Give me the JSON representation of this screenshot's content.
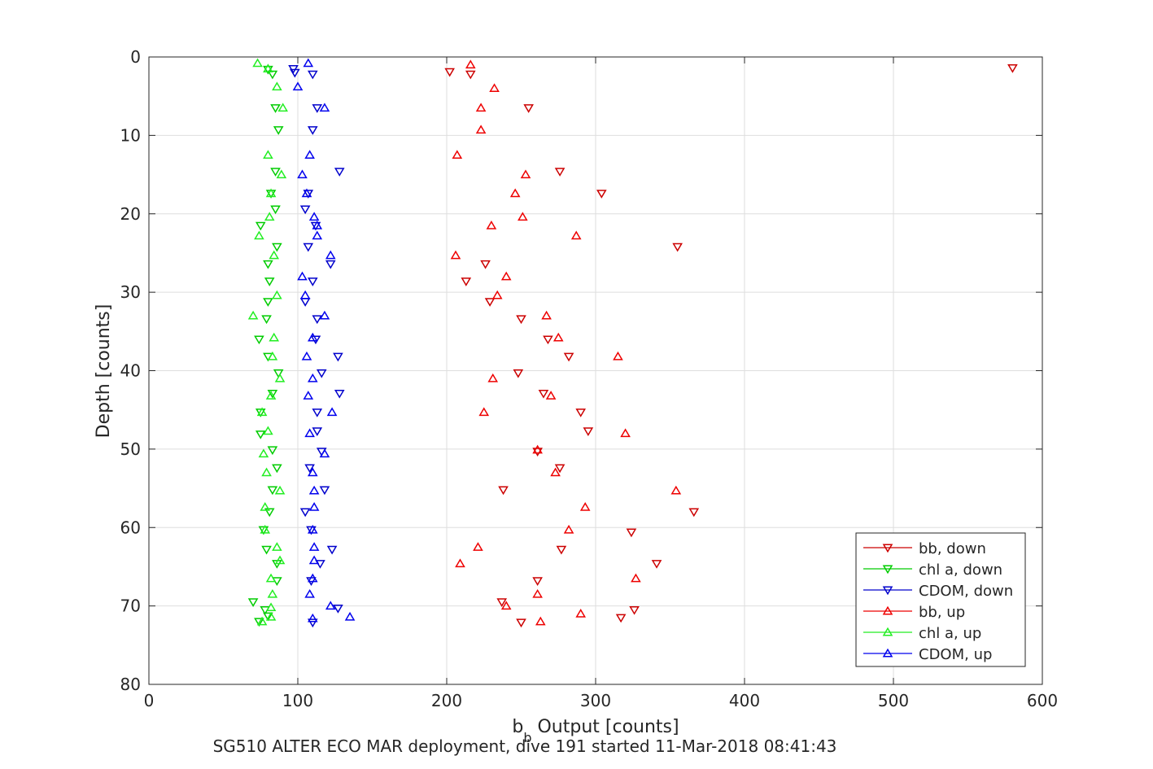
{
  "chart_data": {
    "type": "scatter",
    "xlabel_main": "b",
    "xlabel_sub": "b",
    "xlabel_rest": " Output [counts]",
    "ylabel": "Depth [counts]",
    "caption": "SG510 ALTER ECO MAR deployment, dive 191 started 11-Mar-2018 08:41:43",
    "xlim": [
      0,
      600
    ],
    "ylim": [
      0,
      80
    ],
    "y_reversed": true,
    "grid": true,
    "legend_position": "bottom-right",
    "x_ticks": [
      "0",
      "100",
      "200",
      "300",
      "400",
      "500",
      "600"
    ],
    "y_ticks": [
      "0",
      "10",
      "20",
      "30",
      "40",
      "50",
      "60",
      "70",
      "80"
    ],
    "series": [
      {
        "name": "bb, down",
        "color": "#cc0000",
        "marker": "triangle-down",
        "points": [
          [
            580,
            1.4
          ],
          [
            216,
            2.2
          ],
          [
            202,
            1.9
          ],
          [
            255,
            6.5
          ],
          [
            276,
            14.6
          ],
          [
            304,
            17.4
          ],
          [
            355,
            24.2
          ],
          [
            226,
            26.4
          ],
          [
            213,
            28.6
          ],
          [
            229,
            31.2
          ],
          [
            250,
            33.4
          ],
          [
            268,
            36.0
          ],
          [
            282,
            38.2
          ],
          [
            248,
            40.3
          ],
          [
            265,
            42.9
          ],
          [
            290,
            45.3
          ],
          [
            295,
            47.7
          ],
          [
            261,
            50.3
          ],
          [
            276,
            52.4
          ],
          [
            238,
            55.2
          ],
          [
            366,
            58.0
          ],
          [
            324,
            60.6
          ],
          [
            277,
            62.8
          ],
          [
            341,
            64.6
          ],
          [
            261,
            66.8
          ],
          [
            237,
            69.5
          ],
          [
            326,
            70.5
          ],
          [
            317,
            71.5
          ],
          [
            250,
            72.1
          ]
        ]
      },
      {
        "name": "chl a, down",
        "color": "#00cc00",
        "marker": "triangle-down",
        "points": [
          [
            80,
            1.6
          ],
          [
            83,
            2.2
          ],
          [
            85,
            6.5
          ],
          [
            87,
            9.3
          ],
          [
            85,
            14.6
          ],
          [
            82,
            17.4
          ],
          [
            85,
            19.4
          ],
          [
            75,
            21.5
          ],
          [
            86,
            24.2
          ],
          [
            80,
            26.4
          ],
          [
            81,
            28.6
          ],
          [
            80,
            31.2
          ],
          [
            79,
            33.4
          ],
          [
            74,
            36.0
          ],
          [
            80,
            38.2
          ],
          [
            87,
            40.3
          ],
          [
            83,
            42.9
          ],
          [
            75,
            45.3
          ],
          [
            75,
            48.1
          ],
          [
            83,
            50.1
          ],
          [
            86,
            52.4
          ],
          [
            83,
            55.2
          ],
          [
            81,
            58.0
          ],
          [
            77,
            60.3
          ],
          [
            79,
            62.8
          ],
          [
            86,
            64.6
          ],
          [
            86,
            66.8
          ],
          [
            70,
            69.5
          ],
          [
            78,
            70.5
          ],
          [
            80,
            71.3
          ],
          [
            74,
            72.0
          ]
        ]
      },
      {
        "name": "CDOM, down",
        "color": "#0000cc",
        "marker": "triangle-down",
        "points": [
          [
            97,
            1.5
          ],
          [
            98,
            2.0
          ],
          [
            110,
            2.2
          ],
          [
            113,
            6.5
          ],
          [
            110,
            9.3
          ],
          [
            128,
            14.6
          ],
          [
            107,
            17.4
          ],
          [
            105,
            19.4
          ],
          [
            112,
            21.5
          ],
          [
            107,
            24.2
          ],
          [
            122,
            26.4
          ],
          [
            110,
            28.6
          ],
          [
            105,
            31.2
          ],
          [
            113,
            33.4
          ],
          [
            112,
            36.0
          ],
          [
            127,
            38.2
          ],
          [
            116,
            40.3
          ],
          [
            128,
            42.9
          ],
          [
            113,
            45.3
          ],
          [
            113,
            47.7
          ],
          [
            116,
            50.3
          ],
          [
            108,
            52.4
          ],
          [
            118,
            55.2
          ],
          [
            105,
            58.0
          ],
          [
            109,
            60.3
          ],
          [
            123,
            62.8
          ],
          [
            115,
            64.6
          ],
          [
            109,
            66.8
          ],
          [
            127,
            70.3
          ],
          [
            110,
            72.1
          ]
        ]
      },
      {
        "name": "bb, up",
        "color": "#ee0000",
        "marker": "triangle-up",
        "points": [
          [
            216,
            1.0
          ],
          [
            232,
            4.0
          ],
          [
            223,
            6.5
          ],
          [
            223,
            9.3
          ],
          [
            207,
            12.5
          ],
          [
            253,
            15.0
          ],
          [
            246,
            17.4
          ],
          [
            251,
            20.4
          ],
          [
            230,
            21.5
          ],
          [
            287,
            22.8
          ],
          [
            206,
            25.3
          ],
          [
            240,
            28.0
          ],
          [
            234,
            30.4
          ],
          [
            267,
            33.0
          ],
          [
            275,
            35.8
          ],
          [
            315,
            38.2
          ],
          [
            231,
            41.0
          ],
          [
            270,
            43.2
          ],
          [
            225,
            45.3
          ],
          [
            320,
            48.0
          ],
          [
            261,
            50.1
          ],
          [
            273,
            53.0
          ],
          [
            354,
            55.3
          ],
          [
            293,
            57.4
          ],
          [
            282,
            60.3
          ],
          [
            221,
            62.5
          ],
          [
            209,
            64.6
          ],
          [
            327,
            66.5
          ],
          [
            261,
            68.5
          ],
          [
            240,
            70.0
          ],
          [
            290,
            71.0
          ],
          [
            263,
            72.0
          ]
        ]
      },
      {
        "name": "chl a, up",
        "color": "#22ee22",
        "marker": "triangle-up",
        "points": [
          [
            73,
            0.8
          ],
          [
            80,
            1.5
          ],
          [
            86,
            3.8
          ],
          [
            90,
            6.5
          ],
          [
            89,
            15.0
          ],
          [
            82,
            17.4
          ],
          [
            81,
            20.4
          ],
          [
            80,
            12.5
          ],
          [
            74,
            22.8
          ],
          [
            84,
            25.3
          ],
          [
            86,
            30.4
          ],
          [
            70,
            33.0
          ],
          [
            84,
            35.8
          ],
          [
            83,
            38.2
          ],
          [
            88,
            41.0
          ],
          [
            82,
            43.2
          ],
          [
            76,
            45.3
          ],
          [
            80,
            47.7
          ],
          [
            77,
            50.6
          ],
          [
            79,
            53.0
          ],
          [
            88,
            55.3
          ],
          [
            78,
            57.4
          ],
          [
            78,
            60.3
          ],
          [
            86,
            62.5
          ],
          [
            88,
            64.2
          ],
          [
            82,
            66.5
          ],
          [
            83,
            68.5
          ],
          [
            82,
            70.2
          ],
          [
            82,
            71.4
          ],
          [
            76,
            72.0
          ]
        ]
      },
      {
        "name": "CDOM, up",
        "color": "#0000ee",
        "marker": "triangle-up",
        "points": [
          [
            107,
            0.8
          ],
          [
            100,
            3.8
          ],
          [
            118,
            6.5
          ],
          [
            108,
            12.5
          ],
          [
            103,
            15.0
          ],
          [
            106,
            17.4
          ],
          [
            111,
            20.4
          ],
          [
            113,
            22.8
          ],
          [
            113,
            21.5
          ],
          [
            122,
            25.3
          ],
          [
            103,
            28.0
          ],
          [
            105,
            30.4
          ],
          [
            118,
            33.0
          ],
          [
            110,
            35.8
          ],
          [
            106,
            38.2
          ],
          [
            110,
            41.0
          ],
          [
            107,
            43.2
          ],
          [
            123,
            45.3
          ],
          [
            108,
            48.0
          ],
          [
            118,
            50.6
          ],
          [
            110,
            53.0
          ],
          [
            111,
            55.3
          ],
          [
            111,
            57.4
          ],
          [
            110,
            60.3
          ],
          [
            111,
            62.5
          ],
          [
            111,
            64.2
          ],
          [
            110,
            66.5
          ],
          [
            108,
            68.5
          ],
          [
            122,
            70.0
          ],
          [
            135,
            71.4
          ],
          [
            110,
            71.6
          ]
        ]
      }
    ]
  }
}
